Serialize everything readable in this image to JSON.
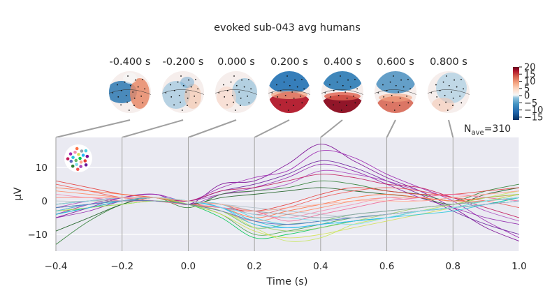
{
  "figure": {
    "title": "evoked sub-043 avg humans",
    "nave_label": "N",
    "nave_sub": "ave",
    "nave_value": "=310"
  },
  "topomaps": {
    "times": [
      "-0.400 s",
      "-0.200 s",
      "0.000 s",
      "0.200 s",
      "0.400 s",
      "0.600 s",
      "0.800 s"
    ],
    "time_values": [
      -0.4,
      -0.2,
      0.0,
      0.2,
      0.4,
      0.6,
      0.8
    ]
  },
  "colorbar": {
    "ticks": [
      20,
      15,
      10,
      5,
      0,
      -5,
      -10,
      -15
    ],
    "tick_labels": [
      "20",
      "15",
      "10",
      "5",
      "0",
      "−5",
      "−10",
      "−15"
    ],
    "range": [
      -17,
      20
    ],
    "colormap": "RdBu_r"
  },
  "chart_data": {
    "type": "line",
    "title": "evoked sub-043 avg humans",
    "xlabel": "Time (s)",
    "ylabel": "μV",
    "xlim": [
      -0.4,
      1.0
    ],
    "ylim": [
      -15,
      19
    ],
    "x_ticks": [
      -0.4,
      -0.2,
      0.0,
      0.2,
      0.4,
      0.6,
      0.8,
      1.0
    ],
    "x_tick_labels": [
      "−0.4",
      "−0.2",
      "0.0",
      "0.2",
      "0.4",
      "0.6",
      "0.8",
      "1.0"
    ],
    "y_ticks": [
      10,
      0,
      -10
    ],
    "y_tick_labels": [
      "10",
      "0",
      "−10"
    ],
    "grid": true,
    "background": "#eaeaf2",
    "x": [
      -0.4,
      -0.3,
      -0.2,
      -0.1,
      0.0,
      0.1,
      0.2,
      0.3,
      0.4,
      0.5,
      0.6,
      0.7,
      0.8,
      0.9,
      1.0
    ],
    "series": [
      {
        "color": "#7b0a93",
        "values": [
          -5,
          -2,
          1,
          2,
          -1,
          5,
          6,
          11,
          17,
          12,
          7,
          3,
          -2,
          -8,
          -12
        ]
      },
      {
        "color": "#9c27b0",
        "values": [
          -4,
          -1,
          1,
          2,
          0,
          4,
          7,
          9,
          15,
          13,
          8,
          4,
          0,
          -6,
          -11
        ]
      },
      {
        "color": "#6a1b9a",
        "values": [
          -3,
          -1,
          0,
          1,
          0,
          3,
          5,
          8,
          12,
          10,
          6,
          2,
          -3,
          -7,
          -10
        ]
      },
      {
        "color": "#8e24aa",
        "values": [
          -5,
          -3,
          0,
          1,
          -1,
          2,
          4,
          7,
          11,
          9,
          5,
          1,
          -2,
          -5,
          -7
        ]
      },
      {
        "color": "#ab47bc",
        "values": [
          -2,
          0,
          1,
          1,
          0,
          2,
          3,
          5,
          9,
          8,
          6,
          3,
          1,
          -3,
          -6
        ]
      },
      {
        "color": "#c2185b",
        "values": [
          -1,
          0,
          1,
          1,
          0,
          3,
          4,
          6,
          8,
          7,
          5,
          4,
          1,
          -2,
          -5
        ]
      },
      {
        "color": "#2e7d32",
        "values": [
          -13,
          -6,
          -1,
          1,
          -2,
          2,
          3,
          4,
          6,
          5,
          3,
          2,
          0,
          3,
          5
        ]
      },
      {
        "color": "#1b5e20",
        "values": [
          -9,
          -5,
          -1,
          1,
          -1,
          1,
          2,
          3,
          4,
          3,
          2,
          1,
          -1,
          2,
          4
        ]
      },
      {
        "color": "#e53935",
        "values": [
          6,
          4,
          2,
          1,
          -1,
          -2,
          -3,
          -1,
          2,
          4,
          3,
          2,
          2,
          3,
          4
        ]
      },
      {
        "color": "#ef5350",
        "values": [
          5,
          3,
          1,
          0,
          -1,
          -1,
          -4,
          -2,
          1,
          3,
          4,
          3,
          1,
          0,
          -2
        ]
      },
      {
        "color": "#ff7043",
        "values": [
          4,
          3,
          2,
          1,
          -1,
          -2,
          -5,
          -3,
          -1,
          1,
          2,
          1,
          0,
          1,
          2
        ]
      },
      {
        "color": "#ff8a65",
        "values": [
          3,
          2,
          1,
          0,
          -1,
          -3,
          -6,
          -4,
          -2,
          0,
          1,
          1,
          0,
          0,
          1
        ]
      },
      {
        "color": "#f48fb1",
        "values": [
          2,
          1,
          1,
          0,
          -1,
          -2,
          -4,
          -5,
          -3,
          -1,
          1,
          0,
          1,
          2,
          3
        ]
      },
      {
        "color": "#f06292",
        "values": [
          1,
          1,
          0,
          0,
          -1,
          -2,
          -3,
          -6,
          -4,
          -2,
          0,
          1,
          2,
          1,
          0
        ]
      },
      {
        "color": "#66bb6a",
        "values": [
          -2,
          -1,
          0,
          0,
          -1,
          -3,
          -8,
          -7,
          -6,
          -4,
          -3,
          -2,
          -1,
          0,
          2
        ]
      },
      {
        "color": "#43a047",
        "values": [
          -3,
          -2,
          0,
          1,
          -1,
          -4,
          -10,
          -9,
          -7,
          -5,
          -4,
          -3,
          -2,
          0,
          1
        ]
      },
      {
        "color": "#00c853",
        "values": [
          -4,
          -2,
          -1,
          0,
          -1,
          -5,
          -11,
          -10,
          -8,
          -6,
          -5,
          -3,
          -2,
          -1,
          1
        ]
      },
      {
        "color": "#d4e157",
        "values": [
          -2,
          -1,
          0,
          1,
          -1,
          -4,
          -9,
          -11,
          -10,
          -8,
          -6,
          -4,
          -2,
          0,
          2
        ]
      },
      {
        "color": "#c6e85b",
        "values": [
          -3,
          -2,
          -1,
          0,
          -1,
          -3,
          -8,
          -12,
          -11,
          -7,
          -5,
          -3,
          -1,
          1,
          3
        ]
      },
      {
        "color": "#9ccc65",
        "values": [
          -1,
          0,
          0,
          1,
          -1,
          -3,
          -7,
          -9,
          -8,
          -6,
          -4,
          -2,
          -1,
          1,
          2
        ]
      },
      {
        "color": "#26c6da",
        "values": [
          -2,
          -1,
          0,
          1,
          0,
          -2,
          -6,
          -8,
          -7,
          -6,
          -5,
          -4,
          -3,
          -1,
          1
        ]
      },
      {
        "color": "#4dd0e1",
        "values": [
          -3,
          -1,
          0,
          1,
          0,
          -1,
          -5,
          -7,
          -6,
          -5,
          -4,
          -3,
          -2,
          0,
          1
        ]
      },
      {
        "color": "#29b6f6",
        "values": [
          -4,
          -2,
          0,
          1,
          0,
          -2,
          -7,
          -8,
          -7,
          -6,
          -5,
          -3,
          -2,
          -1,
          0
        ]
      },
      {
        "color": "#5c6bc0",
        "values": [
          -2,
          -1,
          0,
          0,
          -1,
          -3,
          -6,
          -7,
          -6,
          -5,
          -4,
          -3,
          -2,
          -1,
          0
        ]
      },
      {
        "color": "#90a4ae",
        "values": [
          -1,
          0,
          0,
          1,
          0,
          -1,
          -3,
          -4,
          -5,
          -4,
          -3,
          -2,
          -1,
          0,
          1
        ]
      },
      {
        "color": "#b0bec5",
        "values": [
          0,
          0,
          1,
          1,
          0,
          -1,
          -2,
          -3,
          -4,
          -5,
          -4,
          -3,
          -2,
          -1,
          0
        ]
      },
      {
        "color": "#80deea",
        "values": [
          -1,
          0,
          1,
          1,
          0,
          -2,
          -4,
          -5,
          -6,
          -7,
          -5,
          -3,
          -2,
          0,
          1
        ]
      },
      {
        "color": "#ffab91",
        "values": [
          1,
          1,
          1,
          1,
          0,
          -1,
          -3,
          -2,
          -1,
          0,
          0,
          0,
          1,
          2,
          3
        ]
      }
    ]
  }
}
